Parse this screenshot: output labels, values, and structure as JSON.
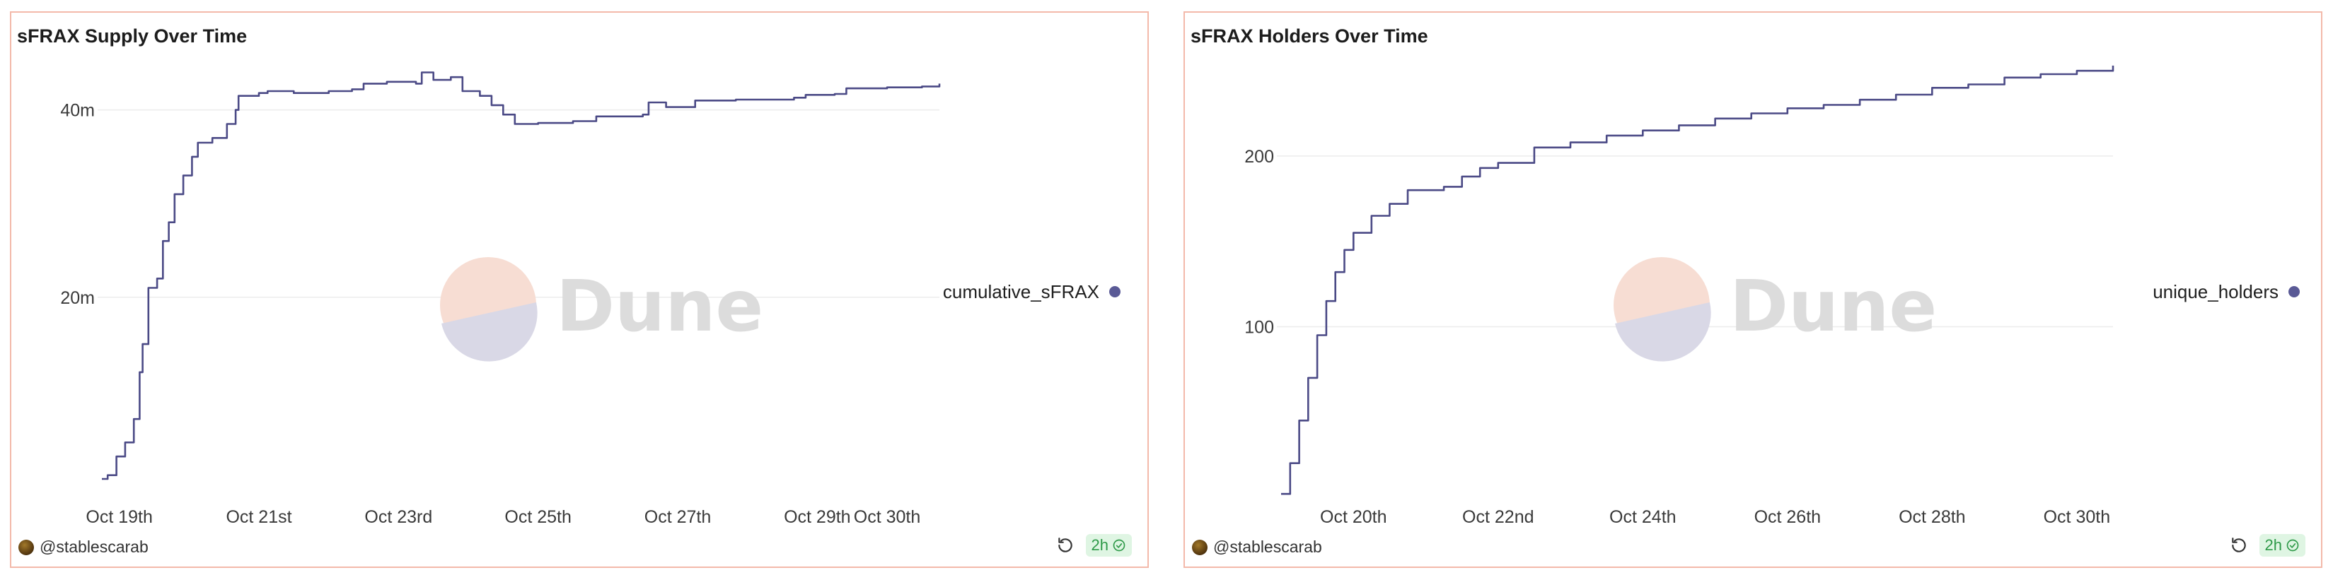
{
  "panels": [
    {
      "title": "sFRAX Supply Over Time",
      "author": "@stablescarab",
      "age": "2h",
      "watermark": "Dune",
      "icons": {
        "avatar": "avatar-icon",
        "refresh": "refresh-icon",
        "status": "check-circle-icon"
      },
      "colors": {
        "line": "#4b4a86",
        "legend_dot": "#5a5a96",
        "border": "#f3b9aa",
        "badge_bg": "#dff5e3",
        "badge_text": "#2f9a49"
      }
    },
    {
      "title": "sFRAX Holders Over Time",
      "author": "@stablescarab",
      "age": "2h",
      "watermark": "Dune",
      "icons": {
        "avatar": "avatar-icon",
        "refresh": "refresh-icon",
        "status": "check-circle-icon"
      },
      "colors": {
        "line": "#4b4a86",
        "legend_dot": "#5a5a96",
        "border": "#f3b9aa",
        "badge_bg": "#dff5e3",
        "badge_text": "#2f9a49"
      }
    }
  ],
  "chart_data": [
    {
      "type": "line",
      "title": "sFRAX Supply Over Time",
      "xlabel": "",
      "ylabel": "",
      "xlim": [
        "2023-10-18T18:00",
        "2023-10-30T18:00"
      ],
      "ylim": [
        0,
        46000000
      ],
      "grid": true,
      "legend_position": "right",
      "yticks": [
        {
          "value": 20000000,
          "label": "20m"
        },
        {
          "value": 40000000,
          "label": "40m"
        }
      ],
      "xticks": [
        {
          "value": "2023-10-19",
          "label": "Oct 19th"
        },
        {
          "value": "2023-10-21",
          "label": "Oct 21st"
        },
        {
          "value": "2023-10-23",
          "label": "Oct 23rd"
        },
        {
          "value": "2023-10-25",
          "label": "Oct 25th"
        },
        {
          "value": "2023-10-27",
          "label": "Oct 27th"
        },
        {
          "value": "2023-10-29",
          "label": "Oct 29th"
        },
        {
          "value": "2023-10-30",
          "label": "Oct 30th"
        }
      ],
      "series": [
        {
          "name": "cumulative_sFRAX",
          "points": [
            [
              "2023-10-18T18:00",
              600000
            ],
            [
              "2023-10-18T20:00",
              1000000
            ],
            [
              "2023-10-18T23:00",
              3000000
            ],
            [
              "2023-10-19T02:00",
              4500000
            ],
            [
              "2023-10-19T05:00",
              7000000
            ],
            [
              "2023-10-19T07:00",
              12000000
            ],
            [
              "2023-10-19T08:00",
              15000000
            ],
            [
              "2023-10-19T10:00",
              21000000
            ],
            [
              "2023-10-19T13:00",
              22000000
            ],
            [
              "2023-10-19T15:00",
              26000000
            ],
            [
              "2023-10-19T17:00",
              28000000
            ],
            [
              "2023-10-19T19:00",
              31000000
            ],
            [
              "2023-10-19T22:00",
              33000000
            ],
            [
              "2023-10-20T01:00",
              35000000
            ],
            [
              "2023-10-20T03:00",
              36500000
            ],
            [
              "2023-10-20T08:00",
              37000000
            ],
            [
              "2023-10-20T13:00",
              38500000
            ],
            [
              "2023-10-20T16:00",
              40000000
            ],
            [
              "2023-10-20T17:00",
              41500000
            ],
            [
              "2023-10-21T00:00",
              41800000
            ],
            [
              "2023-10-21T03:00",
              42000000
            ],
            [
              "2023-10-21T12:00",
              41800000
            ],
            [
              "2023-10-22T00:00",
              42000000
            ],
            [
              "2023-10-22T08:00",
              42200000
            ],
            [
              "2023-10-22T12:00",
              42800000
            ],
            [
              "2023-10-22T20:00",
              43000000
            ],
            [
              "2023-10-23T06:00",
              42800000
            ],
            [
              "2023-10-23T08:00",
              44000000
            ],
            [
              "2023-10-23T12:00",
              43200000
            ],
            [
              "2023-10-23T18:00",
              43500000
            ],
            [
              "2023-10-23T22:00",
              42000000
            ],
            [
              "2023-10-24T04:00",
              41500000
            ],
            [
              "2023-10-24T08:00",
              40500000
            ],
            [
              "2023-10-24T12:00",
              39500000
            ],
            [
              "2023-10-24T16:00",
              38500000
            ],
            [
              "2023-10-25T00:00",
              38600000
            ],
            [
              "2023-10-25T12:00",
              38800000
            ],
            [
              "2023-10-25T20:00",
              39300000
            ],
            [
              "2023-10-26T12:00",
              39500000
            ],
            [
              "2023-10-26T14:00",
              40800000
            ],
            [
              "2023-10-26T20:00",
              40300000
            ],
            [
              "2023-10-27T06:00",
              41000000
            ],
            [
              "2023-10-27T20:00",
              41100000
            ],
            [
              "2023-10-28T16:00",
              41300000
            ],
            [
              "2023-10-28T20:00",
              41600000
            ],
            [
              "2023-10-29T06:00",
              41700000
            ],
            [
              "2023-10-29T10:00",
              42300000
            ],
            [
              "2023-10-30T00:00",
              42400000
            ],
            [
              "2023-10-30T12:00",
              42500000
            ],
            [
              "2023-10-30T18:00",
              42800000
            ]
          ]
        }
      ]
    },
    {
      "type": "line",
      "title": "sFRAX Holders Over Time",
      "xlabel": "",
      "ylabel": "",
      "xlim": [
        "2023-10-19T00:00",
        "2023-10-30T12:00"
      ],
      "ylim": [
        0,
        260
      ],
      "grid": true,
      "legend_position": "right",
      "yticks": [
        {
          "value": 100,
          "label": "100"
        },
        {
          "value": 200,
          "label": "200"
        }
      ],
      "xticks": [
        {
          "value": "2023-10-20",
          "label": "Oct 20th"
        },
        {
          "value": "2023-10-22",
          "label": "Oct 22nd"
        },
        {
          "value": "2023-10-24",
          "label": "Oct 24th"
        },
        {
          "value": "2023-10-26",
          "label": "Oct 26th"
        },
        {
          "value": "2023-10-28",
          "label": "Oct 28th"
        },
        {
          "value": "2023-10-30",
          "label": "Oct 30th"
        }
      ],
      "series": [
        {
          "name": "unique_holders",
          "points": [
            [
              "2023-10-19T00:00",
              2
            ],
            [
              "2023-10-19T03:00",
              20
            ],
            [
              "2023-10-19T06:00",
              45
            ],
            [
              "2023-10-19T09:00",
              70
            ],
            [
              "2023-10-19T12:00",
              95
            ],
            [
              "2023-10-19T15:00",
              115
            ],
            [
              "2023-10-19T18:00",
              132
            ],
            [
              "2023-10-19T21:00",
              145
            ],
            [
              "2023-10-20T00:00",
              155
            ],
            [
              "2023-10-20T06:00",
              165
            ],
            [
              "2023-10-20T12:00",
              172
            ],
            [
              "2023-10-20T18:00",
              180
            ],
            [
              "2023-10-21T06:00",
              182
            ],
            [
              "2023-10-21T12:00",
              188
            ],
            [
              "2023-10-21T18:00",
              193
            ],
            [
              "2023-10-22T00:00",
              196
            ],
            [
              "2023-10-22T12:00",
              205
            ],
            [
              "2023-10-23T00:00",
              208
            ],
            [
              "2023-10-23T12:00",
              212
            ],
            [
              "2023-10-24T00:00",
              215
            ],
            [
              "2023-10-24T12:00",
              218
            ],
            [
              "2023-10-25T00:00",
              222
            ],
            [
              "2023-10-25T12:00",
              225
            ],
            [
              "2023-10-26T00:00",
              228
            ],
            [
              "2023-10-26T12:00",
              230
            ],
            [
              "2023-10-27T00:00",
              233
            ],
            [
              "2023-10-27T12:00",
              236
            ],
            [
              "2023-10-28T00:00",
              240
            ],
            [
              "2023-10-28T12:00",
              242
            ],
            [
              "2023-10-29T00:00",
              246
            ],
            [
              "2023-10-29T12:00",
              248
            ],
            [
              "2023-10-30T00:00",
              250
            ],
            [
              "2023-10-30T12:00",
              253
            ]
          ]
        }
      ]
    }
  ]
}
